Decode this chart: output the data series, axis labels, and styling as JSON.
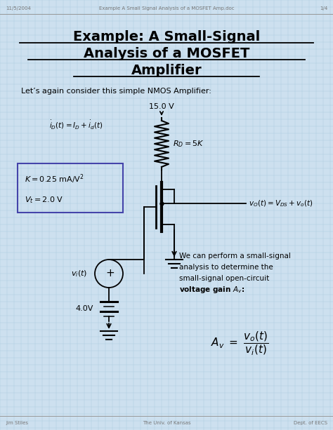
{
  "header_left": "11/5/2004",
  "header_center": "Example A Small Signal Analysis of a MOSFET Amp.doc",
  "header_right": "1/4",
  "footer_left": "Jim Stiles",
  "footer_center": "The Univ. of Kansas",
  "footer_right": "Dept. of EECS",
  "title_line1": "Example: A Small-Signal",
  "title_line2": "Analysis of a MOSFET",
  "title_line3": "Amplifier",
  "intro_text": "Let’s again consider this simple NMOS Amplifier:",
  "vdd_label": "15.0 V",
  "rd_label": "$R_D = 5K$",
  "box_line1": "$K = 0.25$ mA/V$^2$",
  "box_line2": "$V_t = 2.0$ V",
  "vo_eq": "$v_O(t) = V_{DS} + v_o(t)$",
  "vi_label": "$v_i(t)$",
  "vbias_label": "4.0V",
  "analysis_text_line1": "We can perform a small-signal",
  "analysis_text_line2": "analysis to determine the",
  "analysis_text_line3": "small-signal open-circuit",
  "analysis_text_line4": "voltage gain $A_{v}$:",
  "bg_color": "#cde0ef",
  "grid_color": "#b0ccdf",
  "paper_color": "#e8f2f9",
  "header_footer_color": "#777777",
  "title_color": "#000000",
  "body_color": "#111111",
  "box_border_color": "#4444aa"
}
